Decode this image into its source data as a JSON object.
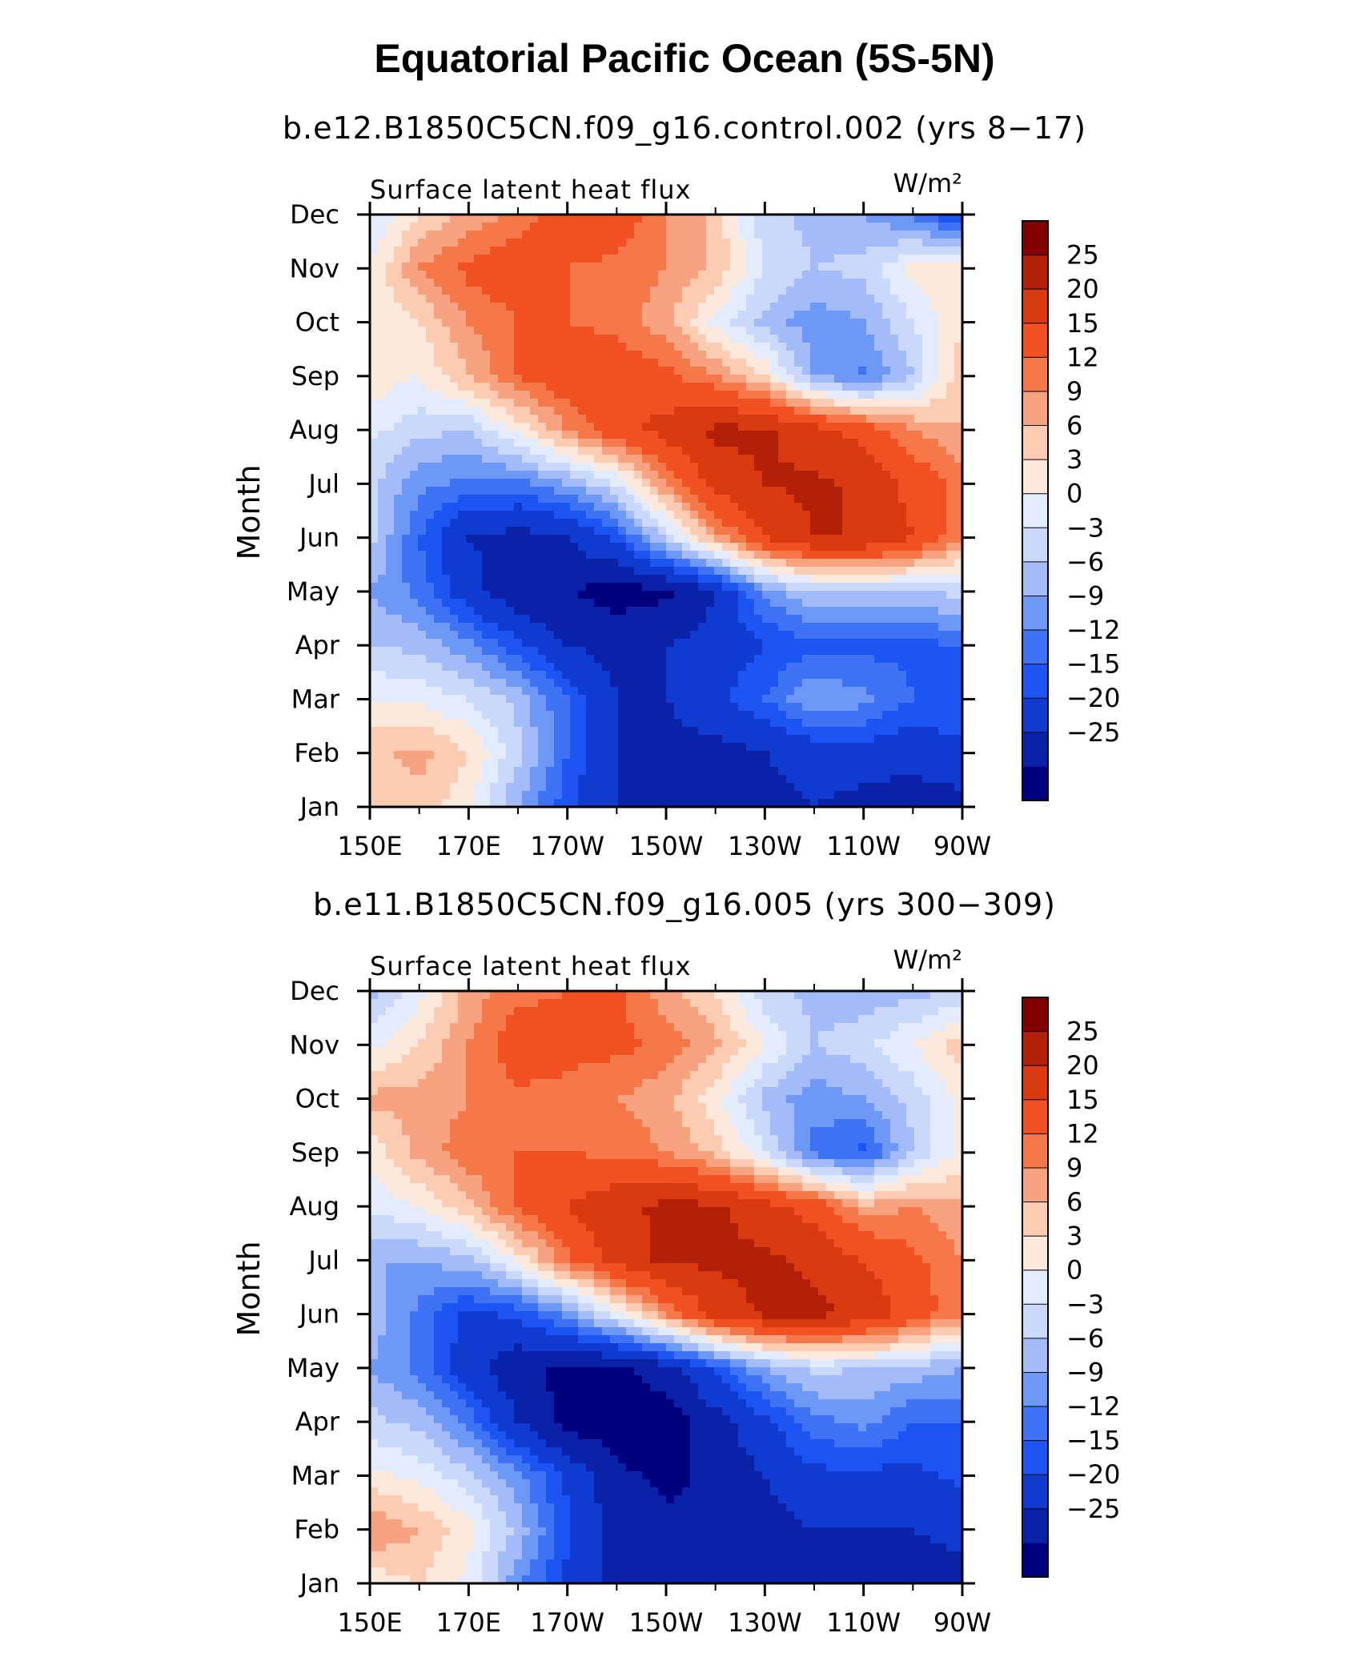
{
  "title": "Equatorial Pacific Ocean (5S-5N)",
  "colors": [
    "#00007f",
    "#0a22a8",
    "#0f3bd1",
    "#1d55f2",
    "#3f73f5",
    "#6e98f6",
    "#a3bbf8",
    "#cad9fb",
    "#e3ecfd",
    "#fde9dc",
    "#fbcbb2",
    "#f7a37f",
    "#f47848",
    "#f05022",
    "#d93a0f",
    "#b41f07",
    "#820000"
  ],
  "panels": [
    {
      "subtitle": "b.e12.B1850C5CN.f09_g16.control.002 (yrs 8−17)",
      "chart_data": {
        "type": "heatmap",
        "variable": "Surface latent heat flux",
        "units": "W/m²",
        "xlabel": "",
        "ylabel": "Month",
        "xticks": [
          "150E",
          "170E",
          "170W",
          "150W",
          "130W",
          "110W",
          "90W"
        ],
        "yticks": [
          "Jan",
          "Feb",
          "Mar",
          "Apr",
          "May",
          "Jun",
          "Jul",
          "Aug",
          "Sep",
          "Oct",
          "Nov",
          "Dec"
        ],
        "xlim": [
          150,
          270
        ],
        "levels": [
          -25,
          -20,
          -15,
          -12,
          -9,
          -6,
          -3,
          0,
          3,
          6,
          9,
          12,
          15,
          20,
          25
        ],
        "colorbar_labels": [
          "25",
          "20",
          "15",
          "12",
          "9",
          "6",
          "3",
          "0",
          "−3",
          "−6",
          "−9",
          "−12",
          "−15",
          "−20",
          "−25"
        ],
        "lon": [
          150,
          160,
          170,
          180,
          190,
          200,
          210,
          220,
          230,
          240,
          250,
          260,
          270
        ],
        "values": [
          [
            6,
            8,
            4,
            -6,
            -14,
            -20,
            -22,
            -24,
            -22,
            -20,
            -22,
            -23,
            -22
          ],
          [
            8,
            10,
            6,
            -2,
            -12,
            -20,
            -22,
            -22,
            -20,
            -18,
            -17,
            -18,
            -16
          ],
          [
            3,
            2,
            0,
            -4,
            -12,
            -20,
            -20,
            -16,
            -12,
            -6,
            -8,
            -12,
            -12
          ],
          [
            -3,
            -4,
            -8,
            -14,
            -20,
            -22,
            -20,
            -18,
            -15,
            -13,
            -13,
            -13,
            -12
          ],
          [
            -6,
            -10,
            -18,
            -24,
            -25,
            -27,
            -26,
            -20,
            -8,
            -3,
            -3,
            -3,
            -2
          ],
          [
            -2,
            -12,
            -20,
            -22,
            -20,
            -14,
            -2,
            10,
            20,
            25,
            25,
            20,
            12
          ],
          [
            -2,
            -8,
            -10,
            -10,
            -6,
            0,
            12,
            22,
            25,
            26,
            24,
            18,
            14
          ],
          [
            1,
            -2,
            -3,
            4,
            12,
            18,
            22,
            26,
            26,
            22,
            18,
            12,
            9
          ],
          [
            5,
            3,
            9,
            15,
            18,
            18,
            16,
            12,
            6,
            -6,
            -10,
            -3,
            8
          ],
          [
            3,
            6,
            12,
            15,
            15,
            14,
            10,
            2,
            -4,
            -8,
            -6,
            0,
            6
          ],
          [
            3,
            12,
            16,
            18,
            15,
            14,
            12,
            8,
            0,
            -3,
            -2,
            4,
            6
          ],
          [
            0,
            6,
            10,
            13,
            18,
            18,
            12,
            8,
            -2,
            -4,
            -6,
            -10,
            -16
          ]
        ]
      }
    },
    {
      "subtitle": "b.e11.B1850C5CN.f09_g16.005 (yrs 300−309)",
      "chart_data": {
        "type": "heatmap",
        "variable": "Surface latent heat flux",
        "units": "W/m²",
        "xlabel": "",
        "ylabel": "Month",
        "xticks": [
          "150E",
          "170E",
          "170W",
          "150W",
          "130W",
          "110W",
          "90W"
        ],
        "yticks": [
          "Jan",
          "Feb",
          "Mar",
          "Apr",
          "May",
          "Jun",
          "Jul",
          "Aug",
          "Sep",
          "Oct",
          "Nov",
          "Dec"
        ],
        "xlim": [
          150,
          270
        ],
        "levels": [
          -25,
          -20,
          -15,
          -12,
          -9,
          -6,
          -3,
          0,
          3,
          6,
          9,
          12,
          15,
          20,
          25
        ],
        "colorbar_labels": [
          "25",
          "20",
          "15",
          "12",
          "9",
          "6",
          "3",
          "0",
          "−3",
          "−6",
          "−9",
          "−12",
          "−15",
          "−20",
          "−25"
        ],
        "lon": [
          150,
          160,
          170,
          180,
          190,
          200,
          210,
          220,
          230,
          240,
          250,
          260,
          270
        ],
        "values": [
          [
            4,
            6,
            2,
            -8,
            -16,
            -22,
            -22,
            -24,
            -22,
            -22,
            -24,
            -24,
            -22
          ],
          [
            12,
            9,
            4,
            -4,
            -14,
            -22,
            -24,
            -24,
            -22,
            -20,
            -20,
            -20,
            -18
          ],
          [
            4,
            2,
            -2,
            -8,
            -16,
            -24,
            -26,
            -24,
            -20,
            -16,
            -16,
            -16,
            -14
          ],
          [
            -2,
            -4,
            -10,
            -20,
            -27,
            -28,
            -28,
            -22,
            -16,
            -10,
            -8,
            -12,
            -12
          ],
          [
            -6,
            -10,
            -18,
            -24,
            -26,
            -26,
            -22,
            -14,
            -6,
            -2,
            -3,
            -4,
            -6
          ],
          [
            -4,
            -10,
            -16,
            -14,
            -8,
            2,
            12,
            22,
            26,
            26,
            24,
            18,
            12
          ],
          [
            -6,
            -6,
            -4,
            4,
            14,
            22,
            26,
            26,
            26,
            24,
            20,
            16,
            12
          ],
          [
            1,
            3,
            8,
            16,
            20,
            24,
            26,
            26,
            22,
            18,
            10,
            12,
            10
          ],
          [
            4,
            10,
            14,
            15,
            15,
            14,
            12,
            8,
            0,
            -10,
            -13,
            -3,
            4
          ],
          [
            10,
            10,
            12,
            14,
            14,
            12,
            10,
            4,
            -4,
            -8,
            -6,
            -2,
            4
          ],
          [
            2,
            6,
            12,
            18,
            16,
            16,
            14,
            10,
            3,
            -3,
            -1,
            3,
            8
          ],
          [
            -4,
            2,
            10,
            14,
            15,
            16,
            10,
            6,
            -2,
            -4,
            -5,
            -4,
            -3
          ]
        ]
      }
    }
  ]
}
